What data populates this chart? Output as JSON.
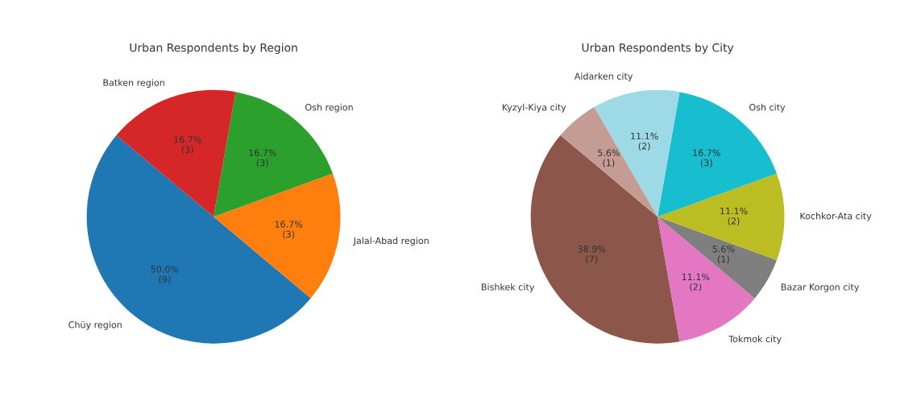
{
  "chart_data": [
    {
      "type": "pie",
      "title": "Urban Respondents by Region",
      "categories": [
        "Chüy region",
        "Jalal-Abad region",
        "Osh region",
        "Batken region"
      ],
      "values": [
        9,
        3,
        3,
        3
      ],
      "colors": [
        "#1f77b4",
        "#ff7f0e",
        "#2ca02c",
        "#d62728"
      ],
      "value_labels": [
        "50.0%\n(9)",
        "16.7%\n(3)",
        "16.7%\n(3)",
        "16.7%\n(3)"
      ]
    },
    {
      "type": "pie",
      "title": "Urban Respondents by City",
      "categories": [
        "Bishkek city",
        "Tokmok city",
        "Bazar Korgon city",
        "Kochkor-Ata city",
        "Osh city",
        "Aidarken city",
        "Kyzyl-Kiya city"
      ],
      "values": [
        7,
        2,
        1,
        2,
        3,
        2,
        1
      ],
      "colors": [
        "#8c564b",
        "#e377c2",
        "#7f7f7f",
        "#bcbd22",
        "#17becf",
        "#9edae5",
        "#c49c94"
      ],
      "value_labels": [
        "38.9%\n(7)",
        "11.1%\n(2)",
        "5.6%\n(1)",
        "11.1%\n(2)",
        "16.7%\n(3)",
        "11.1%\n(2)",
        "5.6%\n(1)"
      ]
    }
  ]
}
